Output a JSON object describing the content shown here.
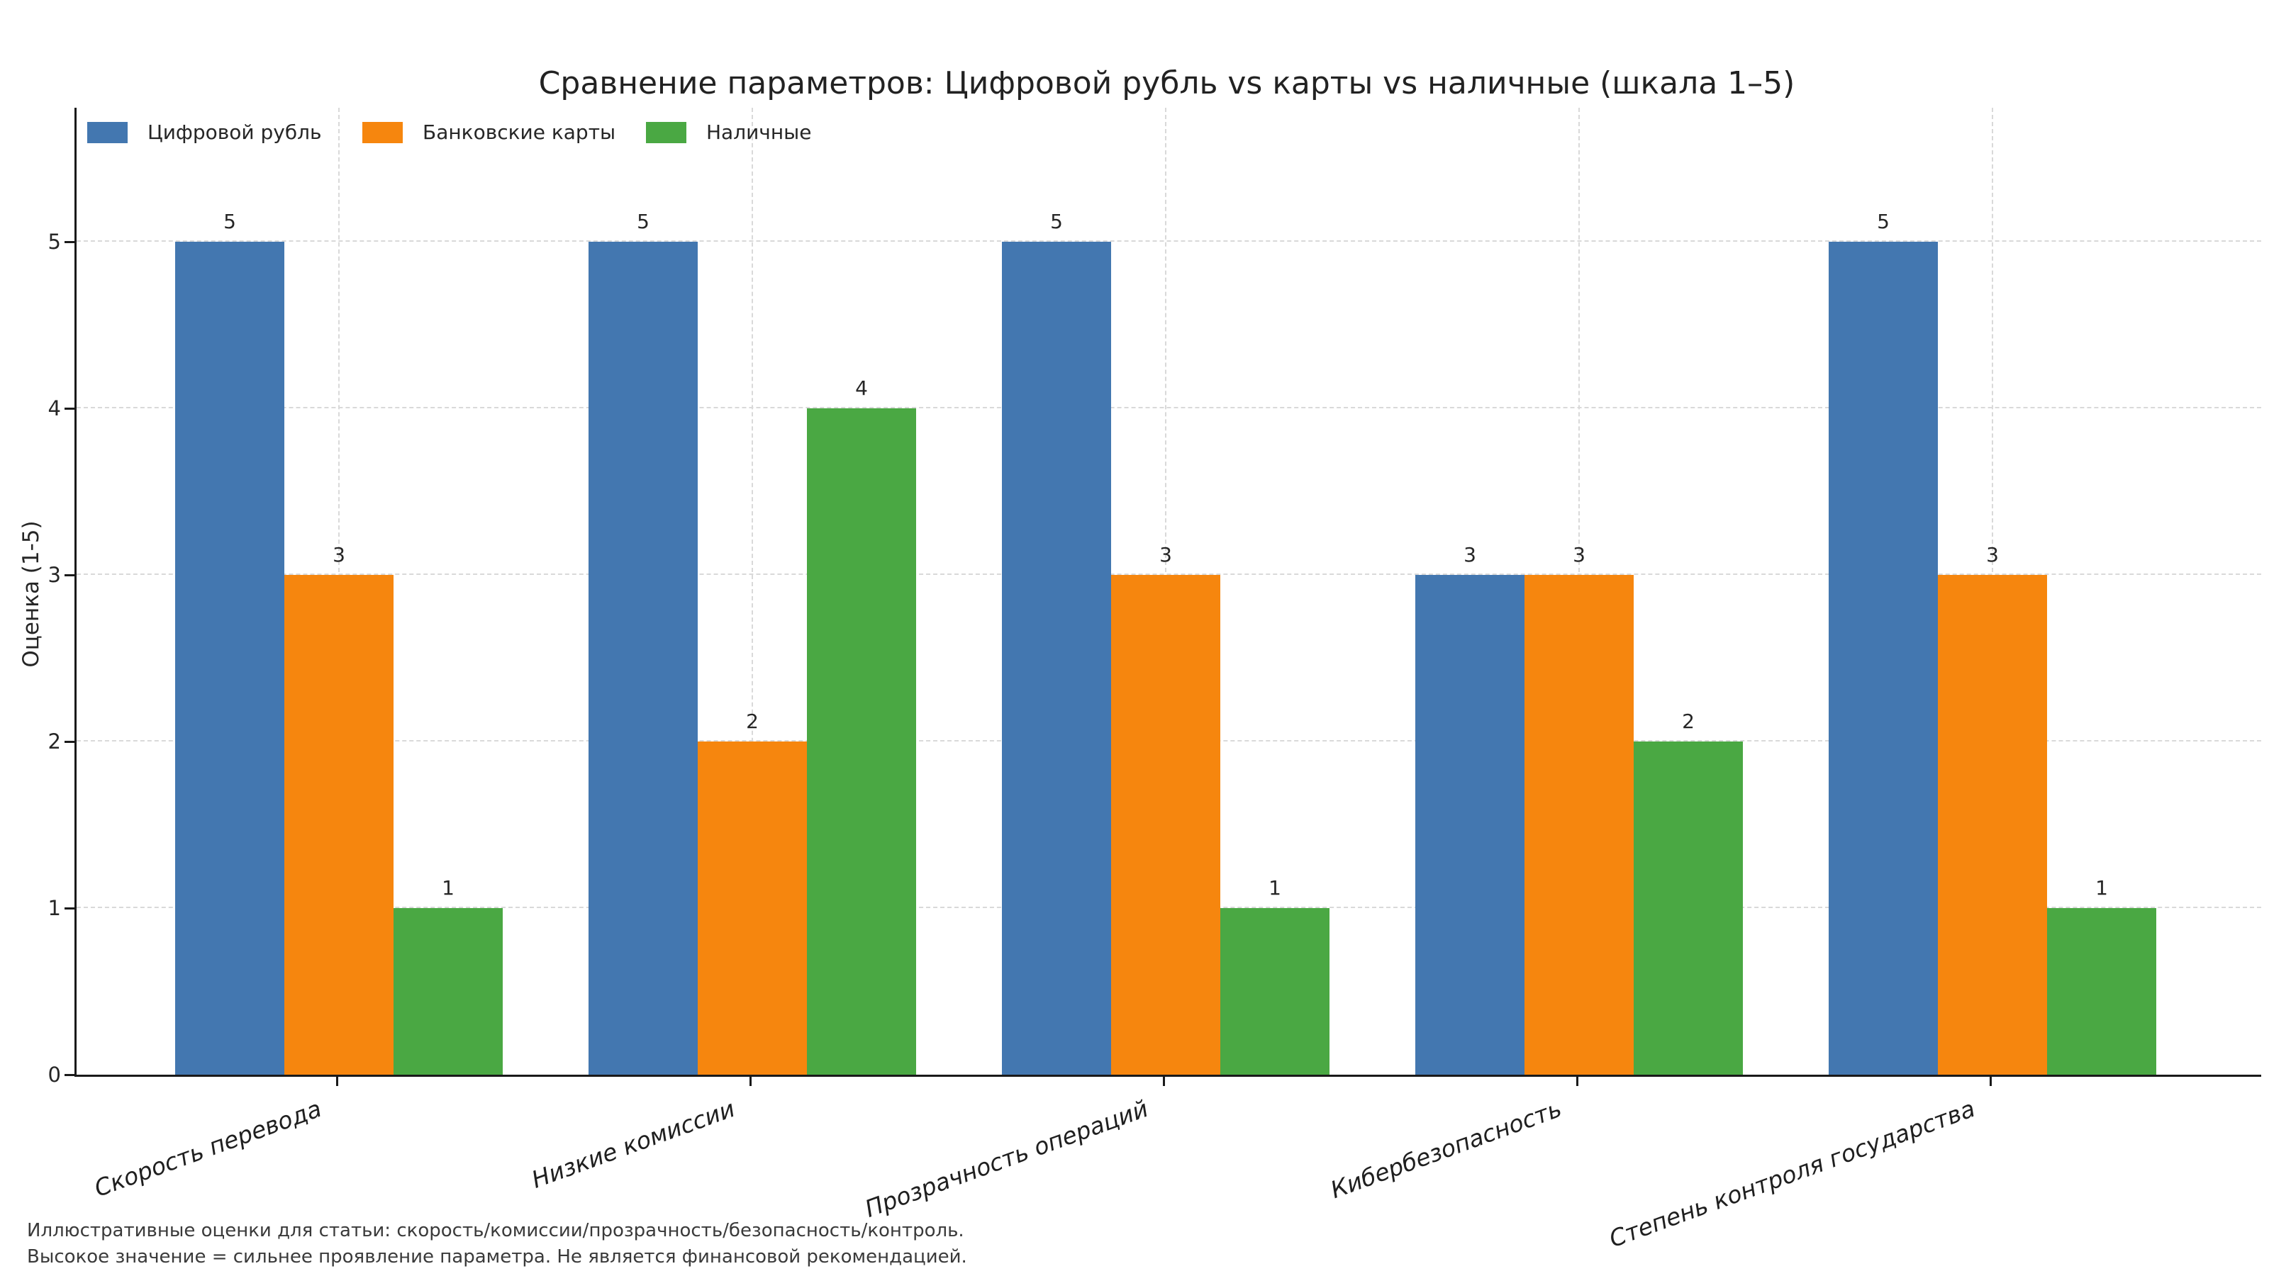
{
  "chart": {
    "title": "Сравнение параметров: Цифровой рубль vs карты vs наличные (шкала 1–5)",
    "y_axis_label": "Оценка (1-5)",
    "y_ticks": [
      0,
      1,
      2,
      3,
      4,
      5
    ],
    "axis_color": "#1a1a1a",
    "grid_color": "#d9d9d9",
    "text_color": "#262626"
  },
  "chart_data": {
    "type": "bar",
    "title": "Сравнение параметров: Цифровой рубль vs карты vs наличные (шкала 1–5)",
    "xlabel": "",
    "ylabel": "Оценка (1-5)",
    "ylim": [
      0,
      5.8
    ],
    "grid": true,
    "grid_style": "dashed",
    "legend_position": "upper-left-inside-horizontal",
    "bar_value_labels": true,
    "categories": [
      "Скорость перевода",
      "Низкие комиссии",
      "Прозрачность операций",
      "Кибербезопасность",
      "Степень контроля государства"
    ],
    "series": [
      {
        "name": "Цифровой рубль",
        "color": "#4377b0",
        "values": [
          5,
          5,
          5,
          3,
          5
        ]
      },
      {
        "name": "Банковские карты",
        "color": "#f6860e",
        "values": [
          3,
          2,
          3,
          3,
          3
        ]
      },
      {
        "name": "Наличные",
        "color": "#4aa843",
        "values": [
          1,
          4,
          1,
          2,
          1
        ]
      }
    ]
  },
  "footnotes": [
    "Иллюстративные оценки для статьи: скорость/комиссии/прозрачность/безопасность/контроль.",
    "Высокое значение = сильнее проявление параметра. Не является финансовой рекомендацией."
  ]
}
